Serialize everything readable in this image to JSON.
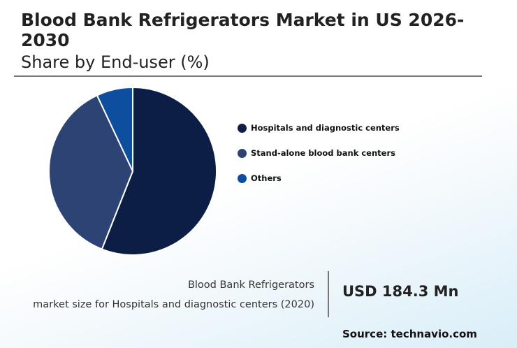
{
  "header": {
    "title": "Blood Bank Refrigerators Market in US 2026-2030",
    "subtitle": "Share by End-user (%)"
  },
  "chart_data": {
    "type": "pie",
    "categories": [
      "Hospitals and diagnostic centers",
      "Stand-alone blood bank centers",
      "Others"
    ],
    "values": [
      56,
      37,
      7
    ],
    "colors": [
      "#0c1e45",
      "#2c4373",
      "#0d4f9e"
    ],
    "legend_position": "right",
    "legend": [
      "Hospitals and diagnostic centers",
      "Stand-alone blood bank centers",
      "Others"
    ]
  },
  "info": {
    "label_line1": "Blood Bank Refrigerators",
    "label_line2": "market size for Hospitals and diagnostic centers (2020)",
    "value": "USD 184.3 Mn"
  },
  "source": "Source: technavio.com"
}
